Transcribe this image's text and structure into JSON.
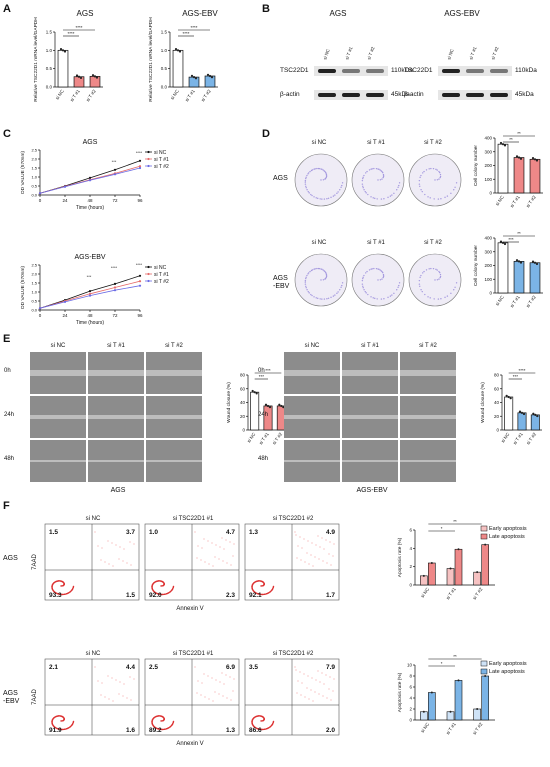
{
  "panels": {
    "a": "A",
    "b": "B",
    "c": "C",
    "d": "D",
    "e": "E",
    "f": "F"
  },
  "colors": {
    "nc": "#ffffff",
    "t1": "#f4a6a6",
    "t2": "#f4a6a6",
    "blue": "#7bb4e6",
    "dark": "#111111",
    "pink": "#e88",
    "lilac": "#a69adf",
    "ltpink": "#f6c2c2",
    "ltblue": "#cfe3f7"
  },
  "panelA": {
    "charts": [
      {
        "title": "AGS",
        "ylabel": "Relative TSC22D1 mRNA level/GAPDH",
        "ticks": [
          "0.0",
          "0.5",
          "1.0",
          "1.5"
        ],
        "cats": [
          "si NC",
          "si T #1",
          "si T #2"
        ],
        "values": [
          1.0,
          0.28,
          0.29
        ],
        "sig": [
          "****",
          "****"
        ],
        "bar": "pink"
      },
      {
        "title": "AGS-EBV",
        "ylabel": "Relative TSC22D1 mRNA level/GAPDH",
        "ticks": [
          "0.0",
          "0.5",
          "1.0",
          "1.5"
        ],
        "cats": [
          "si NC",
          "si T #1",
          "si T #2"
        ],
        "values": [
          1.0,
          0.27,
          0.3
        ],
        "sig": [
          "****",
          "****"
        ],
        "bar": "blue"
      }
    ]
  },
  "panelB": {
    "blots": [
      {
        "title": "AGS",
        "lanes": [
          "si NC",
          "si T #1",
          "si T #2"
        ],
        "rows": [
          "TSC22D1",
          "β-actin"
        ],
        "kda": [
          "110kDa",
          "45kDa"
        ]
      },
      {
        "title": "AGS-EBV",
        "lanes": [
          "si NC",
          "si T #1",
          "si T #2"
        ],
        "rows": [
          "TSC22D1",
          "β-actin"
        ],
        "kda": [
          "110kDa",
          "45kDa"
        ]
      }
    ]
  },
  "panelC": {
    "charts": [
      {
        "title": "AGS",
        "ylabel": "OD VALUE (570nm)",
        "xlabel": "Time (hours)",
        "xticks": [
          "0",
          "24",
          "48",
          "72",
          "96"
        ],
        "yticks": [
          "0.0",
          "0.5",
          "1.0",
          "1.5",
          "2.0",
          "2.5"
        ],
        "legend": [
          "si NC",
          "si T #1",
          "si T #2"
        ],
        "sig": [
          "***",
          "****"
        ],
        "series": [
          {
            "name": "si NC",
            "values": [
              0.1,
              0.5,
              0.95,
              1.4,
              1.9
            ]
          },
          {
            "name": "si T #1",
            "values": [
              0.1,
              0.48,
              0.85,
              1.2,
              1.6
            ]
          },
          {
            "name": "si T #2",
            "values": [
              0.1,
              0.46,
              0.82,
              1.15,
              1.5
            ]
          }
        ]
      },
      {
        "title": "AGS-EBV",
        "ylabel": "OD VALUE (570nm)",
        "xlabel": "Time (hours)",
        "xticks": [
          "0",
          "24",
          "48",
          "72",
          "96"
        ],
        "yticks": [
          "0.0",
          "0.5",
          "1.0",
          "1.5",
          "2.0",
          "2.5"
        ],
        "legend": [
          "si NC",
          "si T #1",
          "si T #2"
        ],
        "sig": [
          "***",
          "****",
          "****"
        ],
        "series": [
          {
            "name": "si NC",
            "values": [
              0.1,
              0.55,
              1.05,
              1.45,
              1.9
            ]
          },
          {
            "name": "si T #1",
            "values": [
              0.1,
              0.5,
              0.9,
              1.25,
              1.6
            ]
          },
          {
            "name": "si T #2",
            "values": [
              0.1,
              0.45,
              0.8,
              1.1,
              1.35
            ]
          }
        ]
      }
    ]
  },
  "panelD": {
    "cols": [
      "si NC",
      "si T #1",
      "si T #2"
    ],
    "rows": [
      "AGS",
      "AGS\n-EBV"
    ],
    "charts": [
      {
        "ylabel": "Cell colony number",
        "yticks": [
          "0",
          "100",
          "200",
          "300",
          "400"
        ],
        "cats": [
          "si NC",
          "si T #1",
          "si T #2"
        ],
        "values": [
          355,
          258,
          245
        ],
        "sig": [
          "**",
          "**"
        ],
        "bar": "pink"
      },
      {
        "ylabel": "Cell colony number",
        "yticks": [
          "0",
          "100",
          "200",
          "300",
          "400"
        ],
        "cats": [
          "si NC",
          "si T #1",
          "si T #2"
        ],
        "values": [
          365,
          230,
          220
        ],
        "sig": [
          "***",
          "**"
        ],
        "bar": "blue"
      }
    ]
  },
  "panelE": {
    "cols": [
      "si NC",
      "si T #1",
      "si T #2"
    ],
    "times": [
      "0h",
      "24h",
      "48h"
    ],
    "groups": [
      "AGS",
      "AGS-EBV"
    ],
    "charts": [
      {
        "ylabel": "Wound closure (%)",
        "yticks": [
          "0",
          "20",
          "40",
          "60",
          "80"
        ],
        "cats": [
          "si NC",
          "si T #1",
          "si T #2"
        ],
        "values": [
          55,
          35,
          35
        ],
        "sig": [
          "***",
          "***"
        ],
        "bar": "pink"
      },
      {
        "ylabel": "Wound closure (%)",
        "yticks": [
          "0",
          "20",
          "40",
          "60",
          "80"
        ],
        "cats": [
          "si NC",
          "si T #1",
          "si T #2"
        ],
        "values": [
          48,
          25,
          22
        ],
        "sig": [
          "***",
          "****"
        ],
        "bar": "blue"
      }
    ]
  },
  "panelF": {
    "cols": [
      "si NC",
      "si TSC22D1 #1",
      "si TSC22D1 #2"
    ],
    "rows": [
      "AGS",
      "AGS\n-EBV"
    ],
    "yaxis": "7AAD",
    "xaxis": "Annexin V",
    "quads": [
      [
        [
          "1.5",
          "3.7",
          "93.3",
          "1.5"
        ],
        [
          "1.0",
          "4.7",
          "92.0",
          "2.3"
        ],
        [
          "1.3",
          "4.9",
          "92.1",
          "1.7"
        ]
      ],
      [
        [
          "2.1",
          "4.4",
          "91.9",
          "1.6"
        ],
        [
          "2.5",
          "6.9",
          "89.2",
          "1.3"
        ],
        [
          "3.5",
          "7.9",
          "86.6",
          "2.0"
        ]
      ]
    ],
    "charts": [
      {
        "ylabel": "Apoptosis rate (%)",
        "yticks": [
          "0",
          "2",
          "4",
          "6"
        ],
        "cats": [
          "si NC",
          "si T #1",
          "si T #2"
        ],
        "legend": [
          "Early apoptosis",
          "Late apoptosis"
        ],
        "early": [
          1.0,
          1.8,
          1.4
        ],
        "late": [
          2.4,
          3.9,
          4.4
        ],
        "sig": [
          "**",
          "*"
        ],
        "c1": "ltpink",
        "c2": "pink"
      },
      {
        "ylabel": "Apoptosis rate (%)",
        "yticks": [
          "0",
          "2",
          "4",
          "6",
          "8",
          "10"
        ],
        "cats": [
          "si NC",
          "si T #1",
          "si T #2"
        ],
        "legend": [
          "Early apoptosis",
          "Late apoptosis"
        ],
        "early": [
          1.5,
          1.5,
          2.0
        ],
        "late": [
          5.0,
          7.2,
          8.0
        ],
        "sig": [
          "**",
          "*"
        ],
        "c1": "ltblue",
        "c2": "blue"
      }
    ]
  }
}
